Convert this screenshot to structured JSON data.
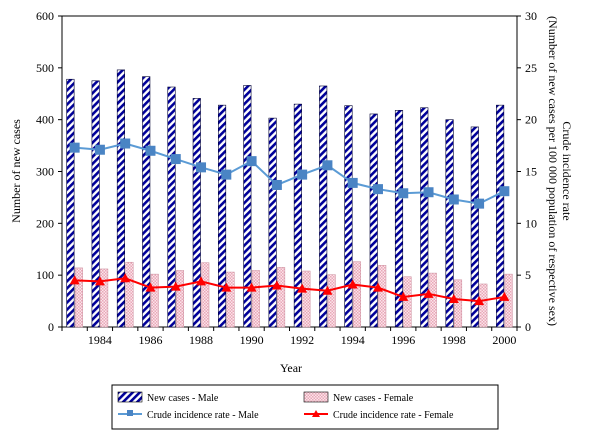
{
  "chart_data": {
    "type": "bar",
    "xlabel": "Year",
    "ylabel_left": "Number of new cases",
    "ylabel_right_line1": "Crude incidence rate",
    "ylabel_right_line2": "(Number of new cases per 100 000 population of respective sex)",
    "ylim_left": [
      0,
      600
    ],
    "yticks_left": [
      0,
      100,
      200,
      300,
      400,
      500,
      600
    ],
    "ylim_right": [
      0,
      30
    ],
    "yticks_right": [
      0,
      5,
      10,
      15,
      20,
      25,
      30
    ],
    "years": [
      1983,
      1984,
      1985,
      1986,
      1987,
      1988,
      1989,
      1990,
      1991,
      1992,
      1993,
      1994,
      1995,
      1996,
      1997,
      1998,
      1999,
      2000
    ],
    "xtick_labels": [
      "1984",
      "1986",
      "1988",
      "1990",
      "1992",
      "1994",
      "1996",
      "1998",
      "2000"
    ],
    "series": [
      {
        "name": "New cases - Male",
        "kind": "bar",
        "axis": "left",
        "pattern": "diagonal-stripes",
        "color": "#000099",
        "values": [
          478,
          475,
          496,
          483,
          463,
          441,
          428,
          466,
          403,
          430,
          465,
          427,
          411,
          418,
          423,
          400,
          386,
          428
        ]
      },
      {
        "name": "New cases - Female",
        "kind": "bar",
        "axis": "left",
        "pattern": "pink-dots",
        "color": "#f3c3cf",
        "values": [
          114,
          112,
          125,
          102,
          109,
          124,
          106,
          109,
          115,
          108,
          101,
          126,
          119,
          97,
          104,
          91,
          83,
          102
        ]
      },
      {
        "name": "Crude incidence rate - Male",
        "kind": "line",
        "axis": "right",
        "marker": "square",
        "color": "#5b9bd5",
        "marker_color": "#4a84c4",
        "values": [
          17.3,
          17.1,
          17.7,
          17.0,
          16.2,
          15.4,
          14.7,
          16.0,
          13.7,
          14.7,
          15.6,
          13.9,
          13.3,
          12.9,
          13.0,
          12.3,
          11.9,
          13.1
        ]
      },
      {
        "name": "Crude incidence rate - Female",
        "kind": "line",
        "axis": "right",
        "marker": "triangle",
        "color": "#ff0000",
        "values": [
          4.5,
          4.4,
          4.7,
          3.8,
          3.9,
          4.4,
          3.8,
          3.8,
          4.0,
          3.7,
          3.5,
          4.1,
          3.8,
          2.9,
          3.2,
          2.7,
          2.5,
          2.9
        ]
      }
    ]
  }
}
